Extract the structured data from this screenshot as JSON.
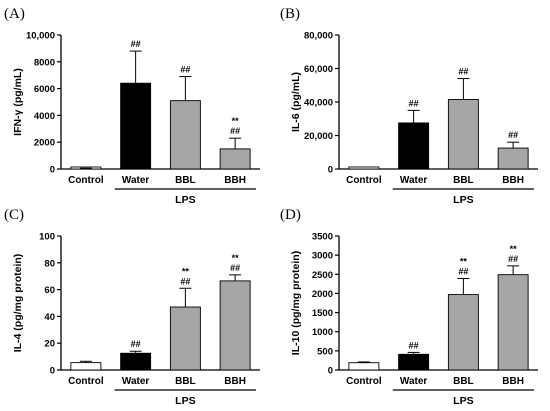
{
  "chart_data": [
    {
      "type": "bar",
      "panel": "(A)",
      "ylabel": "IFN-γ (pg/mL)",
      "ylim": [
        0,
        10000
      ],
      "yticks": [
        "0",
        "2000",
        "4000",
        "6000",
        "8000",
        "10,000"
      ],
      "tick_values": [
        0,
        2000,
        4000,
        6000,
        8000,
        10000
      ],
      "categories": [
        "Control",
        "Water",
        "BBL",
        "BBH"
      ],
      "group_label": "LPS",
      "group_start": 1,
      "values": [
        30,
        6400,
        5100,
        1500
      ],
      "errors": [
        30,
        2400,
        1800,
        800
      ],
      "annotations": [
        "",
        "##",
        "##",
        "**\n##"
      ],
      "colors": [
        "#ffffff",
        "#000000",
        "#a6a6a6",
        "#a6a6a6"
      ]
    },
    {
      "type": "bar",
      "panel": "(B)",
      "ylabel": "IL-6 (pg/mL)",
      "ylim": [
        0,
        80000
      ],
      "yticks": [
        "0",
        "20,000",
        "40,000",
        "60,000",
        "80,000"
      ],
      "tick_values": [
        0,
        20000,
        40000,
        60000,
        80000
      ],
      "categories": [
        "Control",
        "Water",
        "BBL",
        "BBH"
      ],
      "group_label": "LPS",
      "group_start": 1,
      "values": [
        0,
        27500,
        41500,
        12500
      ],
      "errors": [
        0,
        7500,
        12500,
        3500
      ],
      "annotations": [
        "",
        "##",
        "##",
        "##"
      ],
      "colors": [
        "#ffffff",
        "#000000",
        "#a6a6a6",
        "#a6a6a6"
      ]
    },
    {
      "type": "bar",
      "panel": "(C)",
      "ylabel": "IL-4 (pg/mg protein)",
      "ylim": [
        0,
        100
      ],
      "yticks": [
        "0",
        "20",
        "40",
        "60",
        "80",
        "100"
      ],
      "tick_values": [
        0,
        20,
        40,
        60,
        80,
        100
      ],
      "categories": [
        "Control",
        "Water",
        "BBL",
        "BBH"
      ],
      "group_label": "LPS",
      "group_start": 1,
      "values": [
        5.5,
        12.5,
        47,
        66.5
      ],
      "errors": [
        1,
        1.5,
        14,
        4.5
      ],
      "annotations": [
        "",
        "##",
        "**\n##",
        "**\n##"
      ],
      "colors": [
        "#ffffff",
        "#000000",
        "#a6a6a6",
        "#a6a6a6"
      ]
    },
    {
      "type": "bar",
      "panel": "(D)",
      "ylabel": "IL-10 (pg/mg protein)",
      "ylim": [
        0,
        3500
      ],
      "yticks": [
        "0",
        "500",
        "1000",
        "1500",
        "2000",
        "2500",
        "3000",
        "3500"
      ],
      "tick_values": [
        0,
        500,
        1000,
        1500,
        2000,
        2500,
        3000,
        3500
      ],
      "categories": [
        "Control",
        "Water",
        "BBL",
        "BBH"
      ],
      "group_label": "LPS",
      "group_start": 1,
      "values": [
        190,
        410,
        1970,
        2490
      ],
      "errors": [
        20,
        50,
        420,
        230
      ],
      "annotations": [
        "",
        "##",
        "**\n##",
        "**\n##"
      ],
      "colors": [
        "#ffffff",
        "#000000",
        "#a6a6a6",
        "#a6a6a6"
      ]
    }
  ]
}
